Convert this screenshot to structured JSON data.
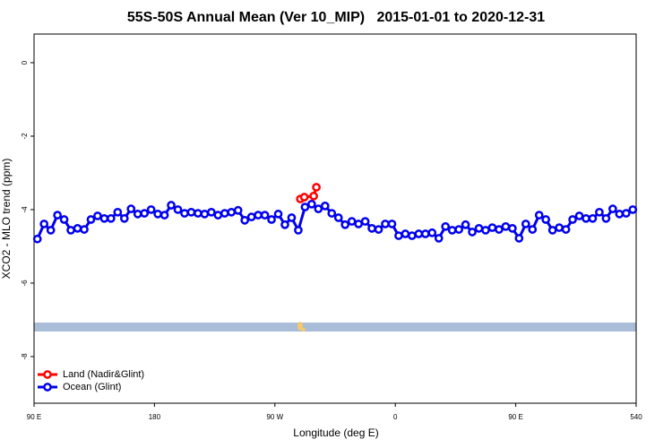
{
  "chart_data": {
    "type": "line",
    "title": "55S-50S Annual Mean (Ver 10_MIP)   2015-01-01 to 2020-12-31",
    "x_label": "Longitude (deg E)",
    "y_label": "XCO2 - MLO trend (ppm)",
    "xlim": [
      90,
      540
    ],
    "xticks": [
      {
        "value": 90,
        "label": "90 E"
      },
      180,
      {
        "value": 270,
        "label": "90 W"
      },
      {
        "value": 360,
        "label": "0"
      },
      {
        "value": 450,
        "label": "90 E"
      },
      540
    ],
    "ylim": [
      -9.27,
      0.78
    ],
    "yticks": [
      0,
      -2,
      -4,
      -6,
      -8
    ],
    "legend": "bottom-left",
    "series": [
      {
        "name": "Land (Nadir&Glint)",
        "color": "#ff0000",
        "x": [
          289,
          292,
          299,
          301
        ],
        "values": [
          -3.71,
          -3.66,
          -3.63,
          -3.39
        ]
      },
      {
        "name": "Ocean (Glint)",
        "color": "#0000ee",
        "x": [
          92.5,
          97.5,
          102.5,
          107.5,
          112.5,
          117.5,
          122.5,
          127.5,
          132.5,
          137.5,
          142.5,
          147.5,
          152.5,
          157.5,
          162.5,
          167.5,
          172.5,
          177.5,
          182.5,
          187.5,
          192.5,
          197.5,
          202.5,
          207.5,
          212.5,
          217.5,
          222.5,
          227.5,
          232.5,
          237.5,
          242.5,
          247.5,
          252.5,
          257.5,
          262.5,
          267.5,
          272.5,
          277.5,
          282.5,
          287.5,
          292.5,
          297.5,
          302.5,
          307.5,
          312.5,
          317.5,
          322.5,
          327.5,
          332.5,
          337.5,
          342.5,
          347.5,
          352.5,
          357.5,
          362.5,
          367.5,
          372.5,
          377.5,
          382.5,
          387.5,
          392.5,
          397.5,
          402.5,
          407.5,
          412.5,
          417.5,
          422.5,
          427.5,
          432.5,
          437.5,
          442.5,
          447.5,
          452.5,
          457.5,
          462.5,
          467.5,
          472.5,
          477.5,
          482.5,
          487.5,
          492.5,
          497.5,
          502.5,
          507.5,
          512.5,
          517.5,
          522.5,
          527.5,
          532.5,
          537.5
        ],
        "values": [
          -4.8,
          -4.39,
          -4.56,
          -4.15,
          -4.27,
          -4.56,
          -4.51,
          -4.54,
          -4.27,
          -4.17,
          -4.24,
          -4.24,
          -4.07,
          -4.24,
          -3.98,
          -4.12,
          -4.1,
          -4.0,
          -4.12,
          -4.15,
          -3.88,
          -4.0,
          -4.1,
          -4.07,
          -4.1,
          -4.12,
          -4.07,
          -4.15,
          -4.1,
          -4.07,
          -4.02,
          -4.29,
          -4.2,
          -4.15,
          -4.15,
          -4.27,
          -4.12,
          -4.41,
          -4.22,
          -4.56,
          -3.93,
          -3.85,
          -3.98,
          -3.9,
          -4.1,
          -4.22,
          -4.41,
          -4.32,
          -4.39,
          -4.32,
          -4.51,
          -4.54,
          -4.39,
          -4.39,
          -4.71,
          -4.66,
          -4.71,
          -4.66,
          -4.66,
          -4.63,
          -4.78,
          -4.46,
          -4.56,
          -4.54,
          -4.41,
          -4.61,
          -4.51,
          -4.56,
          -4.49,
          -4.54,
          -4.46,
          -4.51,
          -4.78,
          -4.39,
          -4.54,
          -4.15,
          -4.27,
          -4.56,
          -4.49,
          -4.54,
          -4.27,
          -4.17,
          -4.24,
          -4.24,
          -4.07,
          -4.24,
          -3.98,
          -4.12,
          -4.1,
          -4.0
        ]
      }
    ]
  }
}
